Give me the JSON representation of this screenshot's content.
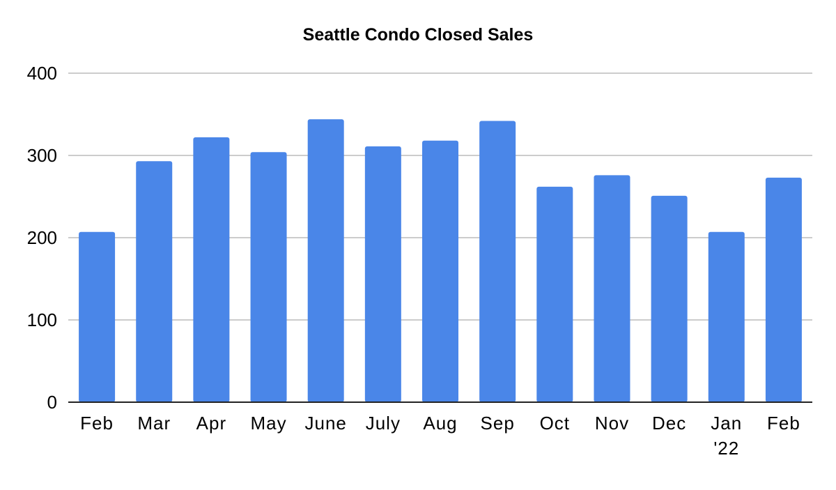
{
  "chart_data": {
    "type": "bar",
    "title": "Seattle Condo Closed Sales",
    "xlabel": "",
    "ylabel": "",
    "categories": [
      [
        "Feb"
      ],
      [
        "Mar"
      ],
      [
        "Apr"
      ],
      [
        "May"
      ],
      [
        "June"
      ],
      [
        "July"
      ],
      [
        "Aug"
      ],
      [
        "Sep"
      ],
      [
        "Oct"
      ],
      [
        "Nov"
      ],
      [
        "Dec"
      ],
      [
        "Jan",
        "'22"
      ],
      [
        "Feb"
      ]
    ],
    "values": [
      207,
      293,
      322,
      304,
      344,
      311,
      318,
      342,
      262,
      276,
      251,
      207,
      273
    ],
    "ylim": [
      0,
      400
    ],
    "yticks": [
      0,
      100,
      200,
      300,
      400
    ],
    "grid": true,
    "legend": "none",
    "colors": {
      "bar": "#4a86e8",
      "grid": "#cccccc",
      "axis": "#222222"
    }
  }
}
